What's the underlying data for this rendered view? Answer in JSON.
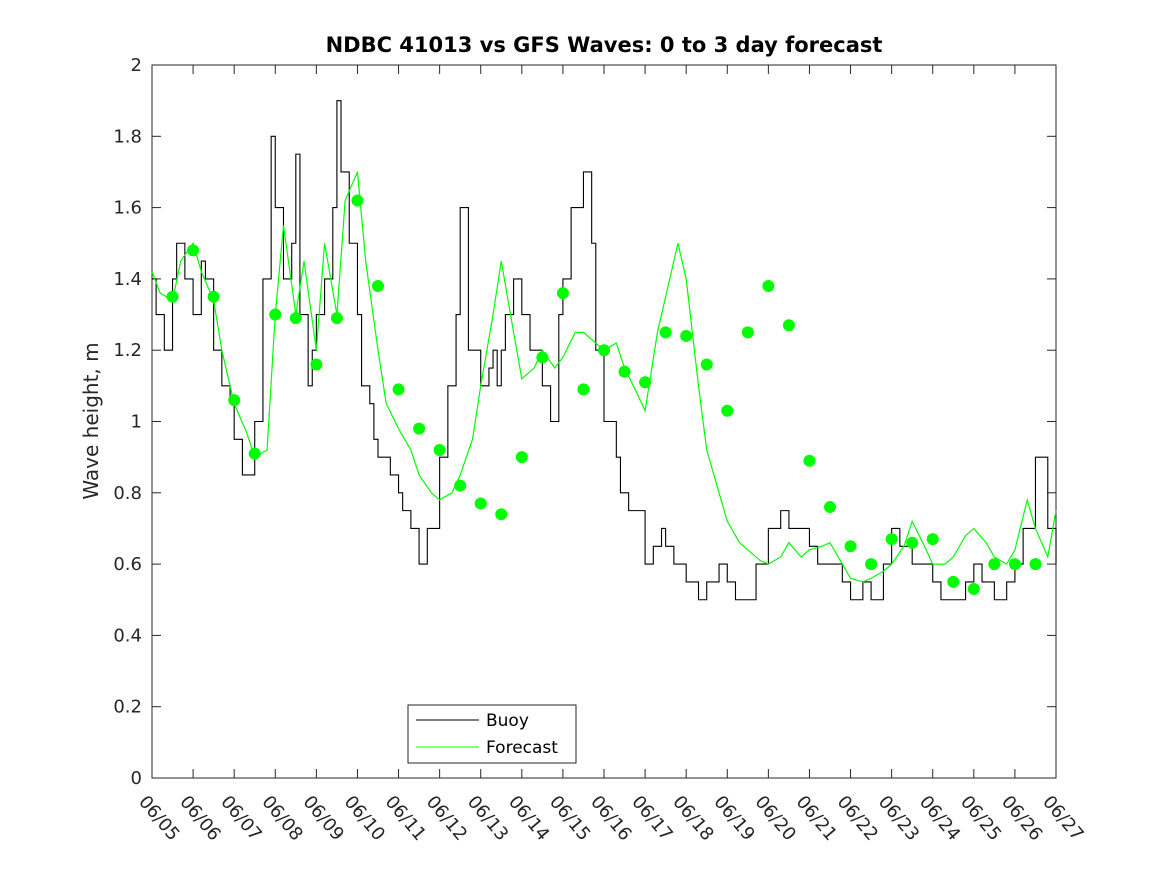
{
  "chart_data": {
    "type": "line",
    "title": "NDBC 41013 vs GFS Waves: 0 to 3 day forecast",
    "xlabel": "",
    "ylabel": "Wave height, m",
    "x_tick_labels": [
      "06/05",
      "06/06",
      "06/07",
      "06/08",
      "06/09",
      "06/10",
      "06/11",
      "06/12",
      "06/13",
      "06/14",
      "06/15",
      "06/16",
      "06/17",
      "06/18",
      "06/19",
      "06/20",
      "06/21",
      "06/22",
      "06/23",
      "06/24",
      "06/25",
      "06/26",
      "06/27"
    ],
    "y_ticks": [
      "0",
      "0.2",
      "0.4",
      "0.6",
      "0.8",
      "1",
      "1.2",
      "1.4",
      "1.6",
      "1.8",
      "2"
    ],
    "xlim": [
      "06/05",
      "06/27"
    ],
    "ylim": [
      0,
      2
    ],
    "grid": false,
    "legend_position": "bottom-left",
    "colors": {
      "buoy": "#000000",
      "forecast": "#00ff00"
    },
    "series": [
      {
        "name": "Buoy",
        "style": "step",
        "x_days": [
          0.0,
          0.1,
          0.3,
          0.5,
          0.6,
          0.8,
          1.0,
          1.2,
          1.3,
          1.5,
          1.7,
          1.9,
          2.0,
          2.2,
          2.5,
          2.7,
          2.9,
          3.0,
          3.2,
          3.4,
          3.5,
          3.6,
          3.8,
          3.9,
          4.0,
          4.2,
          4.4,
          4.5,
          4.6,
          4.8,
          5.0,
          5.1,
          5.3,
          5.4,
          5.5,
          5.6,
          5.8,
          6.0,
          6.1,
          6.3,
          6.5,
          6.7,
          7.0,
          7.2,
          7.4,
          7.5,
          7.7,
          8.0,
          8.2,
          8.3,
          8.4,
          8.5,
          8.6,
          8.8,
          9.0,
          9.2,
          9.5,
          9.7,
          9.9,
          10.0,
          10.2,
          10.5,
          10.7,
          10.8,
          11.0,
          11.3,
          11.4,
          11.6,
          12.0,
          12.2,
          12.4,
          12.5,
          12.7,
          13.0,
          13.3,
          13.5,
          13.8,
          14.0,
          14.2,
          14.5,
          14.7,
          15.0,
          15.3,
          15.5,
          15.8,
          16.0,
          16.2,
          16.5,
          16.8,
          17.0,
          17.3,
          17.5,
          17.8,
          18.0,
          18.2,
          18.5,
          18.8,
          19.0,
          19.2,
          19.5,
          19.8,
          20.0,
          20.2,
          20.5,
          20.8,
          21.0,
          21.2,
          21.5,
          21.8,
          22.0
        ],
        "values": [
          1.4,
          1.3,
          1.2,
          1.4,
          1.5,
          1.4,
          1.3,
          1.45,
          1.4,
          1.2,
          1.1,
          1.05,
          0.95,
          0.85,
          1.0,
          1.4,
          1.8,
          1.6,
          1.4,
          1.5,
          1.75,
          1.3,
          1.1,
          1.2,
          1.3,
          1.4,
          1.6,
          1.9,
          1.7,
          1.5,
          1.3,
          1.1,
          1.05,
          0.95,
          0.9,
          0.9,
          0.85,
          0.8,
          0.75,
          0.7,
          0.6,
          0.7,
          0.9,
          1.1,
          1.3,
          1.6,
          1.2,
          1.1,
          1.15,
          1.2,
          1.1,
          1.2,
          1.3,
          1.4,
          1.3,
          1.2,
          1.1,
          1.0,
          1.3,
          1.4,
          1.6,
          1.7,
          1.5,
          1.2,
          1.0,
          0.9,
          0.8,
          0.75,
          0.6,
          0.65,
          0.7,
          0.65,
          0.6,
          0.55,
          0.5,
          0.55,
          0.6,
          0.55,
          0.5,
          0.5,
          0.6,
          0.7,
          0.75,
          0.7,
          0.7,
          0.65,
          0.6,
          0.6,
          0.55,
          0.5,
          0.55,
          0.5,
          0.6,
          0.7,
          0.65,
          0.6,
          0.6,
          0.55,
          0.5,
          0.5,
          0.55,
          0.6,
          0.55,
          0.5,
          0.55,
          0.6,
          0.7,
          0.9,
          0.7,
          0.6
        ]
      },
      {
        "name": "Forecast",
        "x_days": [
          0.0,
          0.2,
          0.5,
          0.7,
          1.0,
          1.2,
          1.5,
          1.7,
          2.0,
          2.3,
          2.5,
          2.8,
          3.0,
          3.2,
          3.5,
          3.7,
          4.0,
          4.2,
          4.5,
          4.7,
          5.0,
          5.2,
          5.5,
          5.7,
          6.0,
          6.3,
          6.5,
          6.8,
          7.0,
          7.3,
          7.5,
          7.8,
          8.0,
          8.3,
          8.5,
          8.8,
          9.0,
          9.3,
          9.5,
          9.8,
          10.0,
          10.3,
          10.5,
          10.8,
          11.0,
          11.3,
          11.5,
          11.8,
          12.0,
          12.3,
          12.5,
          12.8,
          13.0,
          13.3,
          13.5,
          13.8,
          14.0,
          14.3,
          14.5,
          14.8,
          15.0,
          15.3,
          15.5,
          15.8,
          16.0,
          16.3,
          16.5,
          16.8,
          17.0,
          17.3,
          17.5,
          17.8,
          18.0,
          18.3,
          18.5,
          18.8,
          19.0,
          19.3,
          19.5,
          19.8,
          20.0,
          20.3,
          20.5,
          20.8,
          21.0,
          21.3,
          21.5,
          21.8,
          22.0
        ],
        "values": [
          1.42,
          1.36,
          1.34,
          1.45,
          1.5,
          1.42,
          1.34,
          1.2,
          1.05,
          0.97,
          0.9,
          0.92,
          1.3,
          1.55,
          1.3,
          1.45,
          1.2,
          1.5,
          1.3,
          1.62,
          1.7,
          1.45,
          1.2,
          1.05,
          0.98,
          0.92,
          0.85,
          0.8,
          0.78,
          0.8,
          0.85,
          0.95,
          1.1,
          1.3,
          1.45,
          1.25,
          1.12,
          1.15,
          1.2,
          1.15,
          1.18,
          1.25,
          1.25,
          1.22,
          1.2,
          1.22,
          1.15,
          1.08,
          1.03,
          1.25,
          1.35,
          1.5,
          1.4,
          1.1,
          0.92,
          0.8,
          0.72,
          0.66,
          0.64,
          0.61,
          0.6,
          0.62,
          0.66,
          0.62,
          0.64,
          0.65,
          0.66,
          0.6,
          0.56,
          0.55,
          0.56,
          0.58,
          0.6,
          0.65,
          0.72,
          0.65,
          0.6,
          0.6,
          0.62,
          0.68,
          0.7,
          0.66,
          0.62,
          0.6,
          0.64,
          0.78,
          0.7,
          0.62,
          0.75
        ]
      },
      {
        "name": "",
        "style": "markers",
        "x_days": [
          0.5,
          1.0,
          1.5,
          2.0,
          2.5,
          3.0,
          3.5,
          4.0,
          4.5,
          5.0,
          5.5,
          6.0,
          6.5,
          7.0,
          7.5,
          8.0,
          8.5,
          9.0,
          9.5,
          10.0,
          10.5,
          11.0,
          11.5,
          12.0,
          12.5,
          13.0,
          13.5,
          14.0,
          14.5,
          15.0,
          15.5,
          16.0,
          16.5,
          17.0,
          17.5,
          18.0,
          18.5,
          19.0,
          19.5,
          20.0,
          20.5,
          21.0,
          21.5
        ],
        "values": [
          1.35,
          1.48,
          1.35,
          1.06,
          0.91,
          1.3,
          1.29,
          1.16,
          1.29,
          1.62,
          1.38,
          1.09,
          0.98,
          0.92,
          0.82,
          0.77,
          0.74,
          0.9,
          1.18,
          1.36,
          1.09,
          1.2,
          1.14,
          1.11,
          1.25,
          1.24,
          1.16,
          1.03,
          1.25,
          1.38,
          1.27,
          0.89,
          0.76,
          0.65,
          0.6,
          0.67,
          0.66,
          0.67,
          0.55,
          0.53,
          0.6,
          0.6,
          0.6
        ]
      }
    ]
  },
  "legend": {
    "buoy_label": "Buoy",
    "forecast_label": "Forecast"
  }
}
